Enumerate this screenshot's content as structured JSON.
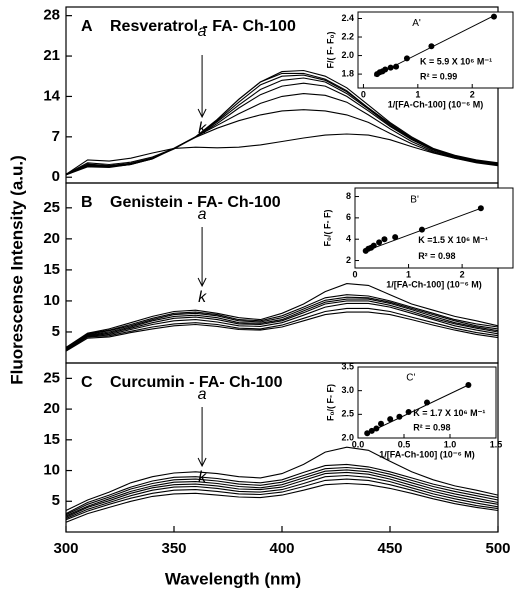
{
  "xlabel": "Wavelength (nm)",
  "ylabel": "Fluorescense Intensity (a.u.)",
  "chart_data": [
    {
      "type": "line",
      "label": "A",
      "title": "Resveratrol - FA- Ch-100",
      "color": "#000000",
      "x": [
        300,
        310,
        320,
        330,
        340,
        350,
        360,
        370,
        380,
        390,
        400,
        410,
        420,
        430,
        440,
        450,
        460,
        470,
        480,
        490,
        500
      ],
      "xlim": [
        300,
        500
      ],
      "ylim": [
        -1,
        29.5
      ],
      "yticks": [
        0,
        7,
        14,
        21,
        28
      ],
      "annotations": [
        "a",
        "k"
      ],
      "series": [
        {
          "values": [
            0.5,
            2.5,
            2.2,
            2.6,
            3.5,
            5,
            7,
            10,
            13.5,
            16.5,
            18.3,
            18.5,
            17.5,
            15.5,
            12.5,
            9.5,
            7,
            5,
            3.8,
            3,
            2.5
          ]
        },
        {
          "values": [
            0.5,
            2.3,
            2.0,
            2.4,
            3.3,
            4.9,
            7,
            10,
            13.5,
            16.5,
            18,
            18,
            17,
            15,
            12,
            9.3,
            6.8,
            4.9,
            3.7,
            2.9,
            2.4
          ]
        },
        {
          "values": [
            0.5,
            2.2,
            2,
            2.4,
            3.3,
            5,
            7,
            9.8,
            13,
            16,
            17.5,
            17.7,
            16.8,
            14.8,
            12,
            9.2,
            6.8,
            4.9,
            3.7,
            2.9,
            2.4
          ]
        },
        {
          "values": [
            0.5,
            2.1,
            1.9,
            2.3,
            3.2,
            5,
            7,
            9.6,
            12.5,
            15.2,
            16.8,
            17.2,
            16.5,
            14.5,
            11.8,
            9,
            6.6,
            4.8,
            3.6,
            2.8,
            2.3
          ]
        },
        {
          "values": [
            0.4,
            2,
            1.8,
            2.2,
            3.2,
            5,
            7,
            9.3,
            12,
            14.3,
            15.8,
            16.3,
            15.8,
            14,
            11.5,
            8.8,
            6.5,
            4.7,
            3.5,
            2.7,
            2.2
          ]
        },
        {
          "values": [
            0.4,
            1.9,
            1.8,
            2.2,
            3.2,
            5,
            7,
            9,
            11,
            12.8,
            14,
            14.5,
            14.2,
            13,
            10.8,
            8.4,
            6.2,
            4.5,
            3.4,
            2.6,
            2.1
          ]
        },
        {
          "values": [
            0.4,
            1.8,
            1.7,
            2.2,
            3.3,
            5,
            6.9,
            8.5,
            9.8,
            10.8,
            11.5,
            11.7,
            11.5,
            10.8,
            9.5,
            7.6,
            5.8,
            4.3,
            3.3,
            2.5,
            2
          ]
        },
        {
          "values": [
            0.5,
            3,
            2.8,
            3.3,
            4.2,
            5,
            5.2,
            5.1,
            5.2,
            5.6,
            6.2,
            6.8,
            7.3,
            7.5,
            7.3,
            6.5,
            5.3,
            4.2,
            3.3,
            2.6,
            2.1
          ]
        }
      ]
    },
    {
      "type": "line",
      "label": "B",
      "title": "Genistein - FA- Ch-100",
      "color": "#000000",
      "x": [
        300,
        310,
        320,
        330,
        340,
        350,
        360,
        370,
        380,
        390,
        400,
        410,
        420,
        430,
        440,
        450,
        460,
        470,
        480,
        490,
        500
      ],
      "xlim": [
        300,
        500
      ],
      "ylim": [
        0,
        29
      ],
      "yticks": [
        5,
        10,
        15,
        20,
        25
      ],
      "annotations": [
        "a",
        "k"
      ],
      "series": [
        {
          "values": [
            2.5,
            4.8,
            5.5,
            6.5,
            7.5,
            8.3,
            8.5,
            8,
            7.3,
            7,
            8,
            9.5,
            11.5,
            12.8,
            12.5,
            11,
            9.5,
            8.5,
            7.5,
            6.8,
            6
          ]
        },
        {
          "values": [
            2.5,
            4.7,
            5.3,
            6.2,
            7.2,
            8,
            8.2,
            7.8,
            7,
            6.8,
            7.6,
            9,
            10.5,
            11,
            10.8,
            10,
            9,
            8,
            7,
            6.3,
            5.8
          ]
        },
        {
          "values": [
            2.4,
            4.6,
            5.2,
            6,
            7,
            7.8,
            8,
            7.6,
            6.8,
            6.6,
            7.3,
            8.7,
            10.1,
            10.6,
            10.5,
            9.8,
            8.8,
            7.8,
            6.8,
            6,
            5.5
          ]
        },
        {
          "values": [
            2.3,
            4.5,
            5,
            5.8,
            6.8,
            7.5,
            7.7,
            7.3,
            6.5,
            6.4,
            7,
            8.4,
            9.8,
            10.3,
            10.3,
            9.6,
            8.6,
            7.5,
            6.5,
            5.8,
            5.2
          ]
        },
        {
          "values": [
            2.2,
            4.4,
            4.8,
            5.6,
            6.5,
            7.2,
            7.4,
            7,
            6.3,
            6.2,
            6.8,
            8.1,
            9.5,
            10,
            10,
            9.3,
            8.3,
            7.2,
            6.3,
            5.6,
            5
          ]
        },
        {
          "values": [
            2.1,
            4.3,
            4.6,
            5.4,
            6.2,
            6.8,
            7,
            6.6,
            6,
            5.9,
            6.5,
            7.7,
            9,
            9.6,
            9.6,
            9,
            8,
            7,
            6,
            5.3,
            4.7
          ]
        },
        {
          "values": [
            2,
            4.2,
            4.4,
            5.1,
            5.8,
            6.3,
            6.5,
            6.2,
            5.6,
            5.5,
            6.1,
            7.2,
            8.3,
            8.8,
            8.8,
            8.3,
            7.4,
            6.5,
            5.6,
            4.9,
            4.4
          ]
        },
        {
          "values": [
            1.9,
            4,
            4.2,
            4.9,
            5.5,
            6,
            6.2,
            5.9,
            5.4,
            5.3,
            5.8,
            6.8,
            7.8,
            8.2,
            8.2,
            7.8,
            7,
            6.1,
            5.3,
            4.6,
            4.1
          ]
        }
      ]
    },
    {
      "type": "line",
      "label": "C",
      "title": "Curcumin - FA- Ch-100",
      "color": "#000000",
      "x": [
        300,
        310,
        320,
        330,
        340,
        350,
        360,
        370,
        380,
        390,
        400,
        410,
        420,
        430,
        440,
        450,
        460,
        470,
        480,
        490,
        500
      ],
      "xlim": [
        300,
        500
      ],
      "ylim": [
        0,
        27.5
      ],
      "yticks": [
        5,
        10,
        15,
        20,
        25
      ],
      "xticks": [
        300,
        350,
        400,
        450,
        500
      ],
      "annotations": [
        "a",
        "k"
      ],
      "series": [
        {
          "values": [
            3.5,
            5.2,
            6.5,
            8,
            9,
            9.6,
            9.8,
            9.5,
            9,
            8.8,
            9.5,
            11,
            13,
            13.8,
            13.3,
            11.5,
            9.8,
            8.5,
            7.5,
            6.8,
            6
          ]
        },
        {
          "values": [
            3,
            4.8,
            6,
            7.3,
            8.3,
            8.9,
            9,
            8.7,
            8.2,
            8,
            8.5,
            9.7,
            10.8,
            11,
            10.6,
            9.8,
            8.8,
            7.8,
            7,
            6.3,
            5.6
          ]
        },
        {
          "values": [
            2.8,
            4.5,
            5.7,
            7,
            7.9,
            8.5,
            8.6,
            8.3,
            7.8,
            7.6,
            8.1,
            9.2,
            10.3,
            10.5,
            10.2,
            9.4,
            8.4,
            7.4,
            6.6,
            5.9,
            5.2
          ]
        },
        {
          "values": [
            2.6,
            4.2,
            5.4,
            6.6,
            7.5,
            8.1,
            8.2,
            7.9,
            7.4,
            7.2,
            7.7,
            8.8,
            9.9,
            10.1,
            9.8,
            9,
            8,
            7,
            6.2,
            5.5,
            4.8
          ]
        },
        {
          "values": [
            2.4,
            4,
            5.1,
            6.3,
            7.2,
            7.7,
            7.8,
            7.5,
            7,
            6.9,
            7.3,
            8.4,
            9.5,
            9.7,
            9.4,
            8.6,
            7.6,
            6.6,
            5.8,
            5.1,
            4.5
          ]
        },
        {
          "values": [
            2.2,
            3.7,
            4.8,
            5.9,
            6.8,
            7.3,
            7.4,
            7.1,
            6.6,
            6.5,
            6.9,
            7.9,
            9,
            9.2,
            8.9,
            8.2,
            7.2,
            6.2,
            5.4,
            4.7,
            4.1
          ]
        },
        {
          "values": [
            2,
            3.4,
            4.5,
            5.5,
            6.3,
            6.8,
            6.9,
            6.6,
            6.2,
            6.1,
            6.5,
            7.4,
            8.4,
            8.6,
            8.4,
            7.7,
            6.8,
            5.8,
            5,
            4.3,
            3.8
          ]
        },
        {
          "values": [
            1.6,
            3,
            4,
            5,
            5.8,
            6.2,
            6.3,
            6,
            5.7,
            5.6,
            6,
            6.8,
            7.7,
            7.9,
            7.7,
            7.1,
            6.3,
            5.4,
            4.6,
            4,
            3.5
          ]
        }
      ]
    },
    {
      "type": "scatter",
      "label": "A'",
      "xlabel": "1/[FA-Ch-100] (10⁻⁶ M)",
      "ylabel": "F/( F- F₀)",
      "color": "#000000",
      "x": [
        0.25,
        0.3,
        0.35,
        0.4,
        0.5,
        0.6,
        0.8,
        1.25,
        2.4
      ],
      "values": [
        1.8,
        1.82,
        1.83,
        1.85,
        1.87,
        1.88,
        1.97,
        2.1,
        2.42
      ],
      "fit": {
        "x": [
          0.2,
          2.4
        ],
        "y": [
          1.78,
          2.43
        ]
      },
      "xlim": [
        -0.1,
        2.75
      ],
      "xticks": [
        0,
        1,
        2
      ],
      "ylim": [
        1.65,
        2.47
      ],
      "yticks": [
        1.8,
        {
          "value": 2.0,
          "label": "2.0"
        },
        2.2,
        2.4
      ],
      "annotations": [
        "K = 5.9 X 10⁶ M⁻¹",
        "R² = 0.99"
      ]
    },
    {
      "type": "scatter",
      "label": "B'",
      "xlabel": "1/[FA-Ch-100] (10⁻⁶ M)",
      "ylabel": "F₀/( F- F)",
      "color": "#000000",
      "x": [
        0.2,
        0.25,
        0.3,
        0.35,
        0.45,
        0.55,
        0.75,
        1.25,
        2.35
      ],
      "values": [
        2.9,
        3.1,
        3.2,
        3.4,
        3.7,
        4.0,
        4.2,
        4.9,
        6.9
      ],
      "fit": {
        "x": [
          0.2,
          2.35
        ],
        "y": [
          2.9,
          6.9
        ]
      },
      "xlim": [
        0,
        2.95
      ],
      "xticks": [
        0,
        1,
        2
      ],
      "ylim": [
        1.3,
        8.8
      ],
      "yticks": [
        2,
        4,
        6,
        8
      ],
      "annotations": [
        "K =1.5 X 10⁶ M⁻¹",
        "R² = 0.98"
      ]
    },
    {
      "type": "scatter",
      "label": "C'",
      "xlabel": "1/[FA-Ch-100] (10⁻⁶ M)",
      "ylabel": "F₀/( F- F)",
      "color": "#000000",
      "x": [
        0.1,
        0.15,
        0.2,
        0.25,
        0.35,
        0.45,
        0.55,
        0.75,
        1.2
      ],
      "values": [
        2.1,
        2.15,
        2.2,
        2.3,
        2.4,
        2.45,
        2.55,
        2.75,
        3.12
      ],
      "fit": {
        "x": [
          0.1,
          1.2
        ],
        "y": [
          2.1,
          3.12
        ]
      },
      "xlim": [
        0,
        1.5
      ],
      "xticks": [
        {
          "value": 0,
          "label": "0.0"
        },
        0.5,
        {
          "value": 1,
          "label": "1.0"
        },
        1.5
      ],
      "ylim": [
        2.0,
        3.5
      ],
      "yticks": [
        {
          "value": 2,
          "label": "2.0"
        },
        2.5,
        {
          "value": 3,
          "label": "3.0"
        },
        3.5
      ],
      "annotations": [
        "K = 1.7 X 10⁶ M⁻¹",
        "R² = 0.98"
      ]
    }
  ]
}
